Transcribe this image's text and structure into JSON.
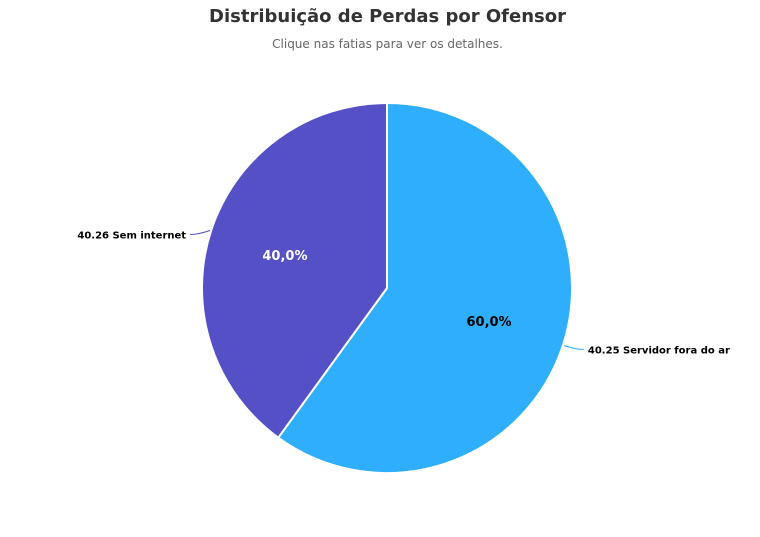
{
  "chart_data": {
    "type": "pie",
    "title": "Distribuição de Perdas por Ofensor",
    "subtitle": "Clique nas fatias para ver os detalhes.",
    "slices": [
      {
        "name": "40.25 Servidor fora do ar",
        "value": 60.0,
        "label": "60,0%",
        "color": "#2eaefc",
        "label_color": "#000000"
      },
      {
        "name": "40.26 Sem internet",
        "value": 40.0,
        "label": "40,0%",
        "color": "#5550c6",
        "label_color": "#ffffff"
      }
    ]
  }
}
